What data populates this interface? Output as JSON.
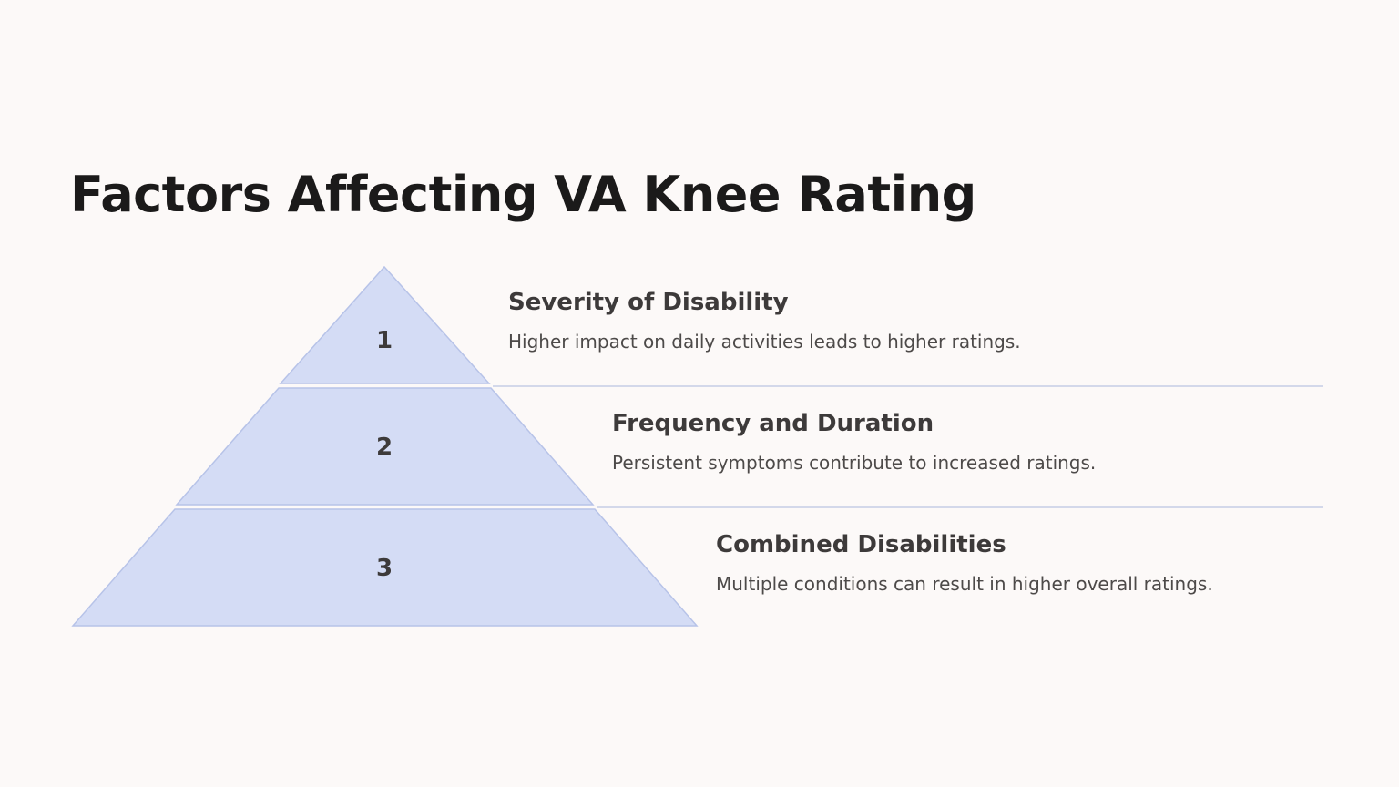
{
  "page": {
    "background": "#fcf9f8",
    "title": "Factors Affecting VA Knee Rating"
  },
  "pyramid": {
    "fill_color": "#d4dcf5",
    "tiers": [
      {
        "number": "1",
        "heading": "Severity of Disability",
        "description": "Higher impact on daily activities leads to higher ratings."
      },
      {
        "number": "2",
        "heading": "Frequency and Duration",
        "description": "Persistent symptoms contribute to increased ratings."
      },
      {
        "number": "3",
        "heading": "Combined Disabilities",
        "description": "Multiple conditions can result in higher overall ratings."
      }
    ]
  }
}
